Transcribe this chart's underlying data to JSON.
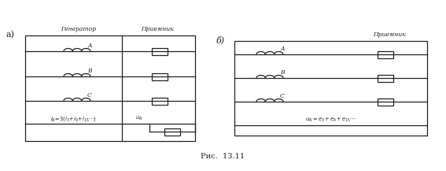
{
  "fig_width": 5.67,
  "fig_height": 2.17,
  "dpi": 100,
  "bg_color": "#ffffff",
  "label_a": "а)",
  "label_b": "б)",
  "caption": "Рис.  13.11",
  "title_a_gen": "Генератор",
  "title_a_rec": "Приемник",
  "title_b_rec": "Приемник",
  "branch_labels_a": [
    "A",
    "B",
    "C"
  ],
  "branch_labels_b": [
    "A",
    "B",
    "C"
  ],
  "formula_a": "$i_N\\!=\\!3(i_3\\!+\\!i_9\\!+\\!i_{15}\\cdots)$",
  "formula_b": "$u_N = e_3 + e_9 + e_{15}\\cdots$",
  "u_n_label": "$u_N$"
}
